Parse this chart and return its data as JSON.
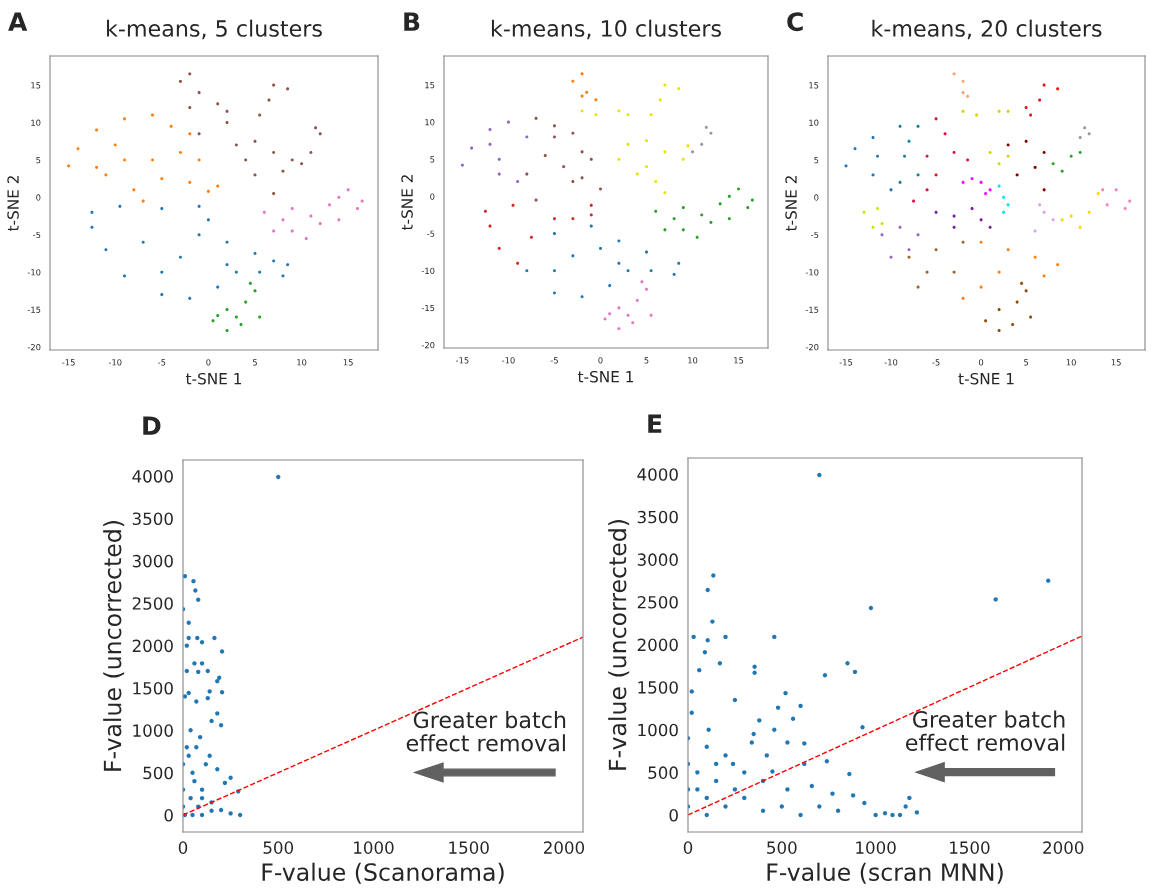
{
  "chart_data": [
    {
      "type": "scatter",
      "title": "k-means, 5 clusters",
      "xlabel": "t-SNE 1",
      "ylabel": "t-SNE 2",
      "annotations": [
        "A"
      ],
      "xlim": [
        -17,
        18.2
      ],
      "ylim": [
        -20.4,
        18.9
      ],
      "xticks": [
        -15,
        -10,
        -5,
        0,
        5,
        10,
        15
      ],
      "yticks": [
        -20,
        -15,
        -10,
        -5,
        0,
        5,
        10,
        15
      ],
      "marker": "circle",
      "series": [
        {
          "color": "#1f77b4",
          "x": [
            -12.5,
            -9.5,
            -5,
            -1,
            0,
            2,
            5,
            7,
            8.5,
            8,
            5.5,
            3,
            1,
            -2,
            -5,
            -9,
            -11,
            -12.5,
            -7,
            -3,
            -1,
            -5,
            2
          ],
          "values": [
            -2,
            -1.2,
            -1.5,
            -1.2,
            -3,
            -6,
            -7.5,
            -8.5,
            -9,
            -10.5,
            -10,
            -10,
            -12,
            -13.5,
            -13,
            -10.5,
            -7,
            -4,
            -6,
            -8,
            -5,
            -10,
            -9
          ]
        },
        {
          "color": "#ff7f0e",
          "x": [
            -15,
            -14,
            -12,
            -9,
            -6,
            -4,
            -2,
            -3,
            -6,
            -9,
            -11,
            -8,
            -7,
            -5,
            -2,
            0,
            1,
            -10,
            -12,
            -1
          ],
          "values": [
            4.2,
            6.5,
            9,
            10.5,
            11,
            9.5,
            8.5,
            6,
            5,
            5,
            3,
            1,
            -0.5,
            2.5,
            2,
            0.8,
            1.5,
            7,
            4,
            5
          ]
        },
        {
          "color": "#8c564b",
          "x": [
            -3,
            -2,
            -1,
            -2,
            2,
            1,
            7,
            8.5,
            5.5,
            6.5,
            3,
            5,
            7,
            9,
            11,
            12,
            11.5,
            8,
            5,
            7,
            4,
            10,
            -1,
            2
          ],
          "values": [
            15.5,
            16.5,
            14,
            12,
            11.5,
            12.5,
            15,
            14.5,
            11,
            13,
            7,
            7.5,
            6,
            5,
            6,
            8.5,
            9.3,
            3.5,
            3,
            0.5,
            5,
            4.5,
            8.5,
            10
          ]
        },
        {
          "color": "#e377c2",
          "x": [
            6,
            7,
            9,
            10.5,
            11,
            13,
            15,
            16.5,
            16,
            14,
            12,
            8,
            9,
            14
          ],
          "values": [
            -2,
            -4.5,
            -4.5,
            -5.5,
            -2.5,
            -1,
            1,
            -0.5,
            -1.5,
            -3,
            -3.5,
            -3,
            -1.5,
            0
          ]
        },
        {
          "color": "#2ca02c",
          "x": [
            4.5,
            5,
            4,
            2,
            0.5,
            2,
            3.5,
            5.5,
            3,
            1
          ],
          "values": [
            -11.5,
            -12.5,
            -14,
            -15,
            -16.5,
            -17.8,
            -17,
            -16,
            -16,
            -15.8
          ]
        }
      ]
    },
    {
      "type": "scatter",
      "title": "k-means, 10 clusters",
      "xlabel": "t-SNE 1",
      "ylabel": "t-SNE 2",
      "annotations": [
        "B"
      ],
      "xlim": [
        -17,
        18.2
      ],
      "ylim": [
        -20.4,
        18.9
      ],
      "xticks": [
        -15,
        -10,
        -5,
        0,
        5,
        10,
        15
      ],
      "yticks": [
        -20,
        -15,
        -10,
        -5,
        0,
        5,
        10,
        15
      ],
      "marker": "circle",
      "series": [
        {
          "color": "#1f77b4",
          "x": [
            -5,
            -1,
            2,
            5,
            8.5,
            8,
            5.5,
            3,
            1,
            -2,
            -5,
            -8,
            -3,
            -5,
            2,
            0
          ],
          "values": [
            -5,
            -4,
            -6,
            -7.5,
            -9,
            -10.5,
            -10,
            -10,
            -12,
            -13.5,
            -13,
            -10,
            -8,
            -10,
            -9,
            -7
          ]
        },
        {
          "color": "#d62728",
          "x": [
            -12.5,
            -9.5,
            -5,
            -1,
            -1,
            -11,
            -9,
            -12,
            -7.5,
            -3
          ],
          "values": [
            -2,
            -1.2,
            -3,
            -1.2,
            -2.5,
            -7,
            -9,
            -4,
            -5.5,
            -3
          ]
        },
        {
          "color": "#9467bd",
          "x": [
            -15,
            -14,
            -12,
            -10,
            -8,
            -11,
            -11,
            -9,
            -12
          ],
          "values": [
            4.2,
            6.5,
            9,
            10,
            8,
            5,
            3,
            2,
            7
          ]
        },
        {
          "color": "#8c564b",
          "x": [
            -7,
            -5,
            -3,
            -6,
            -4,
            -2,
            -8,
            -7,
            -3,
            0,
            -1,
            -5,
            -2
          ],
          "values": [
            10.5,
            9.5,
            8.5,
            5.5,
            4,
            6,
            3,
            -0.5,
            2,
            1,
            5,
            8,
            2.5
          ]
        },
        {
          "color": "#ff7f0e",
          "x": [
            -3,
            -2,
            -1.5,
            -2,
            -0.5
          ],
          "values": [
            15.5,
            16.5,
            14,
            13.5,
            13
          ]
        },
        {
          "color": "#e6e600",
          "x": [
            -2,
            -0.5,
            2,
            3,
            7,
            8.5,
            5.5,
            6.5,
            3,
            5,
            7,
            9,
            9.5,
            4,
            6,
            7,
            2,
            5
          ],
          "values": [
            11.5,
            11,
            11.5,
            11,
            15,
            14.5,
            11,
            13,
            7,
            7.5,
            6,
            5,
            6.8,
            3,
            2,
            0.5,
            5,
            4
          ]
        },
        {
          "color": "#999999",
          "x": [
            11,
            11.5,
            12,
            10
          ],
          "values": [
            7,
            9.3,
            8.5,
            6
          ]
        },
        {
          "color": "#2ca02c",
          "x": [
            6,
            7,
            9,
            10.5,
            11,
            13,
            15,
            16.5,
            16,
            14,
            12,
            8,
            9,
            14
          ],
          "values": [
            -2,
            -4.5,
            -4.5,
            -5.5,
            -2.5,
            -1,
            1,
            -0.5,
            -1.5,
            -3,
            -3.5,
            -3,
            -1.5,
            0
          ]
        },
        {
          "color": "#e377c2",
          "x": [
            4.5,
            5,
            4,
            2,
            0.5,
            2,
            3.5,
            5.5,
            3,
            1
          ],
          "values": [
            -11.5,
            -12.5,
            -14,
            -15,
            -16.5,
            -17.8,
            -17,
            -16,
            -16,
            -15.8
          ]
        }
      ]
    },
    {
      "type": "scatter",
      "title": "k-means, 20 clusters",
      "xlabel": "t-SNE 1",
      "ylabel": "t-SNE 2",
      "annotations": [
        "C"
      ],
      "xlim": [
        -17,
        18.2
      ],
      "ylim": [
        -20.4,
        18.9
      ],
      "xticks": [
        -15,
        -10,
        -5,
        0,
        5,
        10,
        15
      ],
      "yticks": [
        -20,
        -15,
        -10,
        -5,
        0,
        5,
        10,
        15
      ],
      "marker": "circle",
      "series": [
        {
          "color": "#1f77b4",
          "x": [
            -15,
            -14,
            -12,
            -11.5,
            -12,
            -10
          ],
          "values": [
            4.2,
            6.5,
            8,
            5.5,
            3,
            1
          ]
        },
        {
          "color": "#17808e",
          "x": [
            -9,
            -7,
            -8,
            -8.5,
            -7,
            -9
          ],
          "values": [
            9.5,
            9.5,
            7.5,
            5.5,
            3,
            2
          ]
        },
        {
          "color": "#dc143c",
          "x": [
            -5,
            -4,
            -6,
            -3,
            -1.5,
            -5,
            -6,
            -7.5
          ],
          "values": [
            10.5,
            8.5,
            5.5,
            6,
            5,
            3,
            1,
            -0.5
          ]
        },
        {
          "color": "#ff00ff",
          "x": [
            -2,
            0,
            1,
            0.5,
            -1
          ],
          "values": [
            2,
            2,
            1,
            0.5,
            2.5
          ]
        },
        {
          "color": "#00e5ee",
          "x": [
            2.5,
            3,
            2.5,
            2
          ],
          "values": [
            0,
            -1,
            -2,
            1.5
          ]
        },
        {
          "color": "#ffa07a",
          "x": [
            -3,
            -2,
            -2,
            -1.5
          ],
          "values": [
            16.5,
            15.5,
            14,
            13.5
          ]
        },
        {
          "color": "#d4d400",
          "x": [
            -2,
            -0.5,
            2,
            3,
            1,
            2,
            3
          ],
          "values": [
            11.5,
            11,
            11.5,
            11.5,
            6,
            4.5,
            5.5
          ]
        },
        {
          "color": "#e31a1c",
          "x": [
            5.5,
            6.5,
            7,
            8.5,
            5
          ],
          "values": [
            11,
            13,
            15,
            14.5,
            12
          ]
        },
        {
          "color": "#800000",
          "x": [
            3,
            5,
            7,
            6,
            4,
            7
          ],
          "values": [
            7,
            7.5,
            6,
            4,
            3,
            1
          ]
        },
        {
          "color": "#2ca02c",
          "x": [
            8,
            10,
            11,
            9
          ],
          "values": [
            4.5,
            5.5,
            6,
            3.5
          ]
        },
        {
          "color": "#999999",
          "x": [
            11,
            11.5,
            12
          ],
          "values": [
            8,
            9.3,
            8.5
          ]
        },
        {
          "color": "#dda0f0",
          "x": [
            7,
            6,
            8,
            6.5
          ],
          "values": [
            -2,
            -4.5,
            -3,
            -1
          ]
        },
        {
          "color": "#ffd700",
          "x": [
            9,
            11,
            12,
            13,
            10
          ],
          "values": [
            -3,
            -4,
            -2,
            0.5,
            -2.5
          ]
        },
        {
          "color": "#f781bf",
          "x": [
            13.5,
            15,
            16.5,
            14,
            16
          ],
          "values": [
            1,
            1,
            -0.5,
            -1,
            -1.5
          ]
        },
        {
          "color": "#c7e813",
          "x": [
            -13,
            -11.5,
            -11,
            -12
          ],
          "values": [
            -2,
            -1.5,
            -3.5,
            -4
          ]
        },
        {
          "color": "#9467bd",
          "x": [
            -11,
            -9,
            -8,
            -10,
            -7
          ],
          "values": [
            -5,
            -4,
            -7,
            -8,
            -5
          ]
        },
        {
          "color": "#7b1fa2",
          "x": [
            -5,
            -3,
            -1,
            0,
            1,
            -3
          ],
          "values": [
            -2,
            -2.5,
            -1.5,
            -3,
            -4,
            -4
          ]
        },
        {
          "color": "#a0622d",
          "x": [
            -8,
            -5,
            -2,
            -6,
            -3,
            -7
          ],
          "values": [
            -8,
            -7,
            -6,
            -10,
            -10,
            -12
          ]
        },
        {
          "color": "#ff7f0e",
          "x": [
            0,
            3,
            6,
            8.5,
            7,
            2,
            0,
            -2
          ],
          "values": [
            -6,
            -7,
            -8,
            -9,
            -10.5,
            -10,
            -12,
            -13.5
          ]
        },
        {
          "color": "#8c510a",
          "x": [
            4.5,
            5,
            4,
            2,
            0.5,
            2,
            3.5,
            5.5
          ],
          "values": [
            -11.5,
            -12.5,
            -14,
            -15,
            -16.5,
            -17.8,
            -17,
            -16
          ]
        }
      ]
    },
    {
      "type": "scatter",
      "xlabel": "F-value (Scanorama)",
      "ylabel": "F-value (uncorrected)",
      "annotations": [
        "D",
        "Greater batch\neffect removal"
      ],
      "xlim": [
        0,
        2100
      ],
      "ylim": [
        -200,
        4190
      ],
      "xticks": [
        0,
        500,
        1000,
        1500,
        2000
      ],
      "yticks": [
        0,
        500,
        1000,
        1500,
        2000,
        2500,
        3000,
        3500,
        4000
      ],
      "series": [
        {
          "color": "#1f77b4",
          "marker": "circle",
          "x": [
            500,
            10,
            55,
            65,
            80,
            0,
            30,
            30,
            75,
            165,
            100,
            20,
            205,
            60,
            100,
            130,
            190,
            20,
            80,
            180,
            140,
            205,
            30,
            10,
            130,
            70,
            180,
            150,
            200,
            40,
            90,
            140,
            180,
            250,
            220,
            290,
            300,
            250,
            200,
            150,
            100,
            50,
            20,
            0,
            0,
            0,
            10,
            50,
            100,
            150,
            40,
            80,
            100,
            60,
            30,
            120,
            70
          ],
          "values": [
            3990,
            2820,
            2760,
            2650,
            2540,
            2430,
            2270,
            2090,
            2090,
            2090,
            2040,
            2000,
            1930,
            1790,
            1790,
            1700,
            1620,
            1700,
            1690,
            1580,
            1460,
            1450,
            1440,
            1400,
            1380,
            1340,
            1200,
            1110,
            1060,
            1000,
            920,
            700,
            540,
            440,
            380,
            280,
            0,
            20,
            60,
            150,
            300,
            500,
            800,
            600,
            300,
            100,
            0,
            0,
            0,
            50,
            200,
            100,
            200,
            400,
            700,
            600,
            800
          ]
        },
        {
          "type": "line",
          "color": "#ff0000",
          "line_style": "dashed",
          "x": [
            0,
            2100
          ],
          "values": [
            0,
            2100
          ]
        }
      ]
    },
    {
      "type": "scatter",
      "xlabel": "F-value (scran MNN)",
      "ylabel": "F-value (uncorrected)",
      "annotations": [
        "E",
        "Greater batch\neffect removal"
      ],
      "xlim": [
        0,
        2100
      ],
      "ylim": [
        -200,
        4190
      ],
      "xticks": [
        0,
        500,
        1000,
        1500,
        2000
      ],
      "yticks": [
        0,
        500,
        1000,
        1500,
        2000,
        2500,
        3000,
        3500,
        4000
      ],
      "series": [
        {
          "color": "#1f77b4",
          "marker": "circle",
          "x": [
            700,
            1920,
            1640,
            975,
            135,
            105,
            130,
            30,
            105,
            200,
            460,
            90,
            170,
            850,
            355,
            355,
            890,
            730,
            60,
            20,
            520,
            250,
            600,
            480,
            20,
            380,
            560,
            930,
            460,
            110,
            350,
            530,
            620,
            340,
            420,
            740,
            620,
            450,
            860,
            240,
            400,
            300,
            200,
            100,
            0,
            0,
            0,
            0,
            100,
            200,
            300,
            500,
            530,
            660,
            700,
            770,
            880,
            940,
            1000,
            1090,
            1130,
            1180,
            1160,
            1220,
            1050,
            800,
            600,
            400,
            50,
            150,
            250,
            100,
            50,
            150
          ],
          "values": [
            3990,
            2750,
            2530,
            2430,
            2810,
            2640,
            2270,
            2090,
            2050,
            2090,
            2090,
            1910,
            1780,
            1780,
            1740,
            1670,
            1680,
            1640,
            1700,
            1450,
            1430,
            1350,
            1280,
            1260,
            1200,
            1110,
            1130,
            1030,
            1000,
            1000,
            950,
            850,
            840,
            850,
            700,
            630,
            600,
            510,
            480,
            600,
            400,
            500,
            700,
            800,
            900,
            600,
            300,
            100,
            0,
            100,
            200,
            100,
            300,
            340,
            100,
            250,
            230,
            140,
            0,
            0,
            0,
            200,
            100,
            30,
            20,
            50,
            0,
            50,
            300,
            400,
            300,
            200,
            500,
            600
          ]
        },
        {
          "type": "line",
          "color": "#ff0000",
          "line_style": "dashed",
          "x": [
            0,
            2100
          ],
          "values": [
            0,
            2100
          ]
        }
      ]
    }
  ]
}
